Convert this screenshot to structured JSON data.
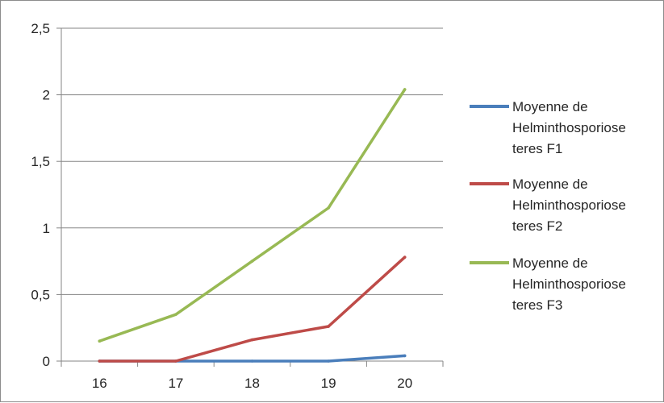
{
  "chart_data": {
    "type": "line",
    "categories": [
      "16",
      "17",
      "18",
      "19",
      "20"
    ],
    "ylim": [
      0,
      2.5
    ],
    "y_ticks": [
      "0",
      "0,5",
      "1",
      "1,5",
      "2",
      "2,5"
    ],
    "y_tick_values": [
      0,
      0.5,
      1,
      1.5,
      2,
      2.5
    ],
    "grid": "horizontal",
    "legend_position": "right",
    "series": [
      {
        "name": "Moyenne de Helminthosporiose teres F1",
        "legend_lines": [
          "Moyenne de",
          "Helminthosporiose",
          "teres F1"
        ],
        "color": "#4a7ebb",
        "values": [
          0,
          0,
          0,
          0,
          0.04
        ]
      },
      {
        "name": "Moyenne de Helminthosporiose teres F2",
        "legend_lines": [
          "Moyenne de",
          "Helminthosporiose",
          "teres F2"
        ],
        "color": "#be4b48",
        "values": [
          0,
          0,
          0.16,
          0.26,
          0.78
        ]
      },
      {
        "name": "Moyenne de Helminthosporiose teres F3",
        "legend_lines": [
          "Moyenne de",
          "Helminthosporiose",
          "teres F3"
        ],
        "color": "#98b954",
        "values": [
          0.15,
          0.35,
          0.75,
          1.15,
          2.04
        ]
      }
    ]
  }
}
